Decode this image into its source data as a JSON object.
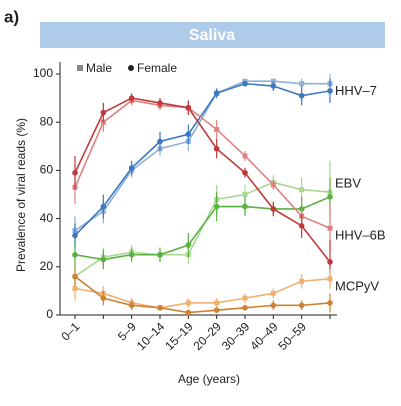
{
  "panel_label": "a)",
  "chart_data": {
    "type": "line",
    "title": "Saliva",
    "x_label": "Age (years)",
    "y_label": "Prevalence of viral reads (%)",
    "categories": [
      "0–1",
      null,
      "5–9",
      "10–14",
      "15–19",
      "20–29",
      "30–39",
      "40–49",
      "50–59",
      null
    ],
    "ylim": [
      0,
      100
    ],
    "yticks": [
      0,
      20,
      40,
      60,
      80,
      100
    ],
    "legend": [
      "Male",
      "Female"
    ],
    "viruses": [
      {
        "label": "HHV–7",
        "male_color": "#8fb0d8",
        "female_color": "#3b78c0",
        "male": [
          35,
          43,
          60,
          69,
          72,
          92,
          97,
          97,
          96,
          96
        ],
        "male_errors": [
          6,
          5,
          3,
          3,
          4,
          2,
          1,
          1,
          2,
          4
        ],
        "female": [
          33,
          45,
          61,
          72,
          75,
          92,
          96,
          95,
          91,
          93
        ],
        "female_errors": [
          5,
          5,
          3,
          4,
          4,
          2,
          1,
          2,
          4,
          5
        ]
      },
      {
        "label": "EBV",
        "male_color": "#a8d890",
        "female_color": "#5ab040",
        "male": [
          16,
          24,
          26,
          25,
          25,
          48,
          50,
          55,
          52,
          51
        ],
        "male_errors": [
          5,
          4,
          3,
          3,
          4,
          6,
          4,
          3,
          5,
          13
        ],
        "female": [
          25,
          23,
          25,
          25,
          29,
          45,
          45,
          44,
          44,
          49
        ],
        "female_errors": [
          5,
          4,
          3,
          3,
          5,
          6,
          4,
          3,
          5,
          8
        ]
      },
      {
        "label": "HHV–6B",
        "male_color": "#e08080",
        "female_color": "#c03a3a",
        "male": [
          53,
          80,
          89,
          87,
          86,
          77,
          66,
          54,
          41,
          36
        ],
        "male_errors": [
          7,
          4,
          2,
          2,
          3,
          4,
          2,
          2,
          4,
          10
        ],
        "female": [
          59,
          84,
          90,
          88,
          86,
          69,
          59,
          44,
          37,
          22
        ],
        "female_errors": [
          7,
          4,
          2,
          2,
          3,
          4,
          2,
          3,
          5,
          9
        ]
      },
      {
        "label": "MCPyV",
        "male_color": "#f0b070",
        "female_color": "#d08030",
        "male": [
          11,
          9,
          5,
          3,
          5,
          5,
          7,
          9,
          14,
          15
        ],
        "male_errors": [
          5,
          3,
          2,
          1,
          2,
          2,
          2,
          2,
          3,
          4
        ],
        "female": [
          16,
          7,
          4,
          3,
          1,
          2,
          3,
          4,
          4,
          5
        ],
        "female_errors": [
          4,
          3,
          2,
          1,
          1,
          1,
          1,
          2,
          2,
          4
        ]
      }
    ]
  }
}
